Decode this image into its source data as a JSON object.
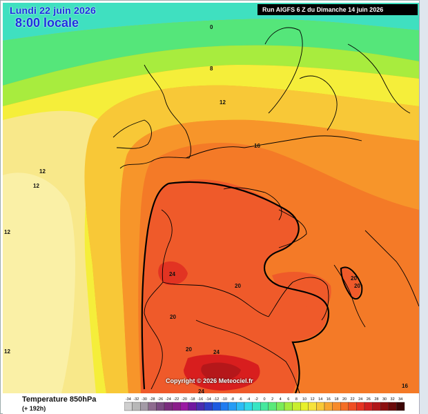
{
  "header": {
    "date": "Lundi 22 juin 2026",
    "time": "8:00 locale",
    "run": "Run AIGFS 6 Z du Dimanche 14 juin 2026"
  },
  "map": {
    "copyright": "Copyright © 2026 Meteociel.fr",
    "isotherm_labels": [
      "0",
      "8",
      "12",
      "12",
      "12",
      "12",
      "16",
      "20",
      "20",
      "20",
      "20",
      "20",
      "24",
      "24",
      "24",
      "12",
      "16"
    ]
  },
  "legend": {
    "parameter": "Temperature 850hPa",
    "lead_time": "(+ 192h)",
    "ticks": [
      "-34",
      "-32",
      "-30",
      "-28",
      "-26",
      "-24",
      "-22",
      "-20",
      "-18",
      "-16",
      "-14",
      "-12",
      "-10",
      "-8",
      "-6",
      "-4",
      "-2",
      "0",
      "2",
      "4",
      "6",
      "8",
      "10",
      "12",
      "14",
      "16",
      "18",
      "20",
      "22",
      "24",
      "26",
      "28",
      "30",
      "32",
      "34"
    ],
    "colors": [
      "#cfcfcf",
      "#b8b8b8",
      "#a39aa6",
      "#8e6b8f",
      "#7b4a82",
      "#7a2c7e",
      "#8a1d8a",
      "#9a1aa3",
      "#7018a0",
      "#4a2cb0",
      "#2d40c8",
      "#1e5ae0",
      "#1f7cf0",
      "#259cf5",
      "#2bbcf5",
      "#30d8e8",
      "#39e5c4",
      "#46e89e",
      "#5ae97a",
      "#7beb5a",
      "#a4ec3e",
      "#c9ee2f",
      "#e8f02a",
      "#f7e23a",
      "#f8c837",
      "#f8a630",
      "#f78b2a",
      "#f46e26",
      "#ef4e24",
      "#e63322",
      "#d01f1f",
      "#b01618",
      "#8c1010",
      "#6a0a0a",
      "#3c0606"
    ]
  }
}
